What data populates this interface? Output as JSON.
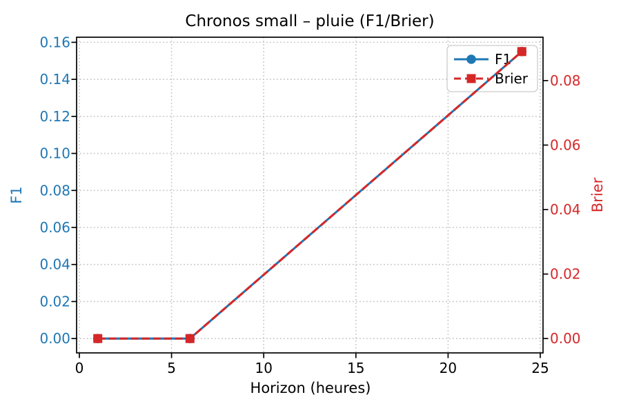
{
  "chart_data": {
    "type": "line",
    "title": "Chronos small – pluie (F1/Brier)",
    "xlabel": "Horizon (heures)",
    "ylabel_left": "F1",
    "ylabel_right": "Brier",
    "x": [
      1,
      6,
      24
    ],
    "series": [
      {
        "name": "F1",
        "axis": "left",
        "color": "#1f77b4",
        "line_style": "solid",
        "marker": "circle",
        "values": [
          0.0,
          0.0,
          0.155
        ]
      },
      {
        "name": "Brier",
        "axis": "right",
        "color": "#d62728",
        "line_style": "dashed",
        "marker": "square",
        "values": [
          0.0,
          0.0,
          0.089
        ]
      }
    ],
    "x_ticks": [
      0,
      5,
      10,
      15,
      20,
      25
    ],
    "left_ticks": [
      0.0,
      0.02,
      0.04,
      0.06,
      0.08,
      0.1,
      0.12,
      0.14,
      0.16
    ],
    "right_ticks": [
      0.0,
      0.02,
      0.04,
      0.06,
      0.08
    ],
    "xlim": [
      -0.15,
      25.15
    ],
    "left_ylim": [
      -0.00775,
      0.16275
    ],
    "right_ylim": [
      -0.00445,
      0.09345
    ],
    "y_tick_decimals": 2,
    "grid": {
      "visible": true,
      "style": "dotted",
      "color": "#c6c6c6"
    },
    "legend": {
      "position": "upper-right",
      "entries": [
        "F1",
        "Brier"
      ]
    },
    "colors": {
      "left_axis_text": "#1f77b4",
      "right_axis_text": "#d62728",
      "x_axis_text": "#000000",
      "title_text": "#000000",
      "spine": "#000000",
      "legend_border": "#cccccc",
      "background": "#ffffff"
    }
  }
}
